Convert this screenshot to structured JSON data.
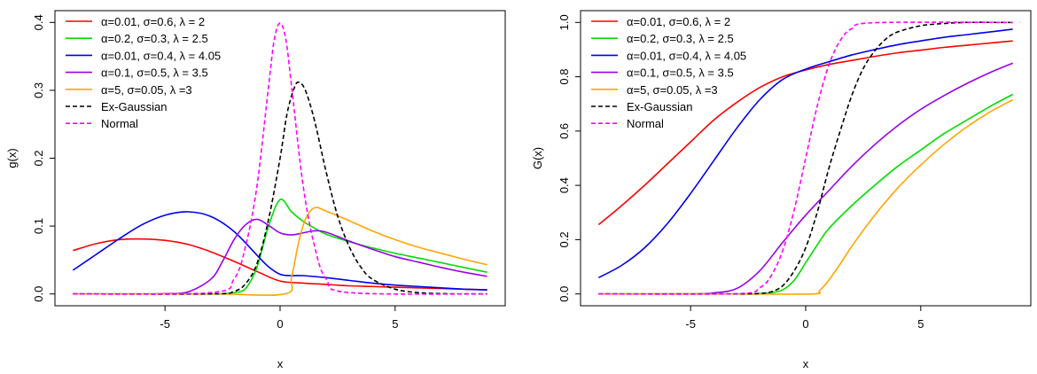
{
  "chart_data": [
    {
      "type": "line",
      "title": "",
      "xlabel": "x",
      "ylabel": "g(x)",
      "xlim": [
        -9,
        9
      ],
      "ylim": [
        0,
        0.4
      ],
      "xticks": [
        -5,
        0,
        5
      ],
      "yticks": [
        0.0,
        0.1,
        0.2,
        0.3,
        0.4
      ],
      "ytick_labels": [
        "0.0",
        "0.1",
        "0.2",
        "0.3",
        "0.4"
      ],
      "legend_position": "top-left",
      "series": [
        {
          "name": "α=0.01, σ=0.6, λ = 2",
          "color": "#ff0000",
          "dash": "solid",
          "x": [
            -9,
            -8,
            -7,
            -6,
            -5,
            -4,
            -3,
            -2,
            -1,
            0,
            1,
            2,
            3,
            4,
            5,
            6,
            7,
            8,
            9
          ],
          "y": [
            0.064,
            0.074,
            0.08,
            0.081,
            0.079,
            0.073,
            0.062,
            0.048,
            0.033,
            0.019,
            0.016,
            0.014,
            0.012,
            0.011,
            0.01,
            0.009,
            0.008,
            0.007,
            0.006
          ]
        },
        {
          "name": "α=0.2, σ=0.3, λ = 2.5",
          "color": "#00dd00",
          "dash": "solid",
          "x": [
            -9,
            -6,
            -3,
            -2.5,
            -2,
            -1.5,
            -1,
            -0.5,
            0,
            0.5,
            1,
            1.5,
            2,
            3,
            4,
            5,
            6,
            7,
            8,
            9
          ],
          "y": [
            0,
            0,
            0,
            0.0005,
            0.002,
            0.008,
            0.04,
            0.1,
            0.139,
            0.121,
            0.107,
            0.097,
            0.088,
            0.077,
            0.068,
            0.06,
            0.053,
            0.046,
            0.039,
            0.032
          ]
        },
        {
          "name": "α=0.01, σ=0.4, λ = 4.05",
          "color": "#0000ee",
          "dash": "solid",
          "x": [
            -9,
            -8,
            -7,
            -6,
            -5,
            -4,
            -3,
            -2,
            -1,
            -0.5,
            0,
            0.5,
            1,
            2,
            3,
            4,
            5,
            6,
            7,
            8,
            9
          ],
          "y": [
            0.035,
            0.058,
            0.081,
            0.102,
            0.116,
            0.121,
            0.114,
            0.092,
            0.057,
            0.04,
            0.029,
            0.027,
            0.027,
            0.024,
            0.02,
            0.016,
            0.013,
            0.011,
            0.009,
            0.007,
            0.006
          ]
        },
        {
          "name": "α=0.1, σ=0.5, λ = 3.5",
          "color": "#9900ee",
          "dash": "solid",
          "x": [
            -9,
            -6,
            -5,
            -4,
            -3,
            -2.5,
            -2,
            -1.5,
            -1,
            -0.5,
            0,
            0.5,
            1,
            1.5,
            2,
            3,
            4,
            5,
            6,
            7,
            8,
            9
          ],
          "y": [
            0,
            0,
            0.0005,
            0.003,
            0.022,
            0.048,
            0.08,
            0.102,
            0.11,
            0.101,
            0.09,
            0.087,
            0.09,
            0.093,
            0.091,
            0.078,
            0.066,
            0.055,
            0.047,
            0.039,
            0.032,
            0.026
          ]
        },
        {
          "name": "α=5, σ=0.05, λ =3",
          "color": "#ffa500",
          "dash": "solid",
          "x": [
            -9,
            -3,
            0.2,
            0.5,
            0.8,
            1.1,
            1.5,
            2,
            3,
            4,
            5,
            6,
            7,
            8,
            9
          ],
          "y": [
            0,
            0,
            0,
            0.025,
            0.075,
            0.11,
            0.127,
            0.122,
            0.108,
            0.093,
            0.08,
            0.069,
            0.06,
            0.051,
            0.043
          ]
        },
        {
          "name": "Ex-Gaussian",
          "color": "#000000",
          "dash": "dashed",
          "x": [
            -9,
            -3,
            -2,
            -1.5,
            -1,
            -0.5,
            0,
            0.3,
            0.6,
            0.8,
            1.1,
            1.5,
            2,
            2.5,
            3,
            3.5,
            4,
            5,
            6,
            7,
            8,
            9
          ],
          "y": [
            0,
            0,
            0.004,
            0.015,
            0.045,
            0.11,
            0.2,
            0.265,
            0.302,
            0.312,
            0.3,
            0.255,
            0.18,
            0.115,
            0.07,
            0.04,
            0.022,
            0.007,
            0.002,
            0.0005,
            0,
            0
          ]
        },
        {
          "name": "Normal",
          "color": "#ff00ff",
          "dash": "dashed",
          "x": [
            -9,
            -3,
            -2,
            -1.5,
            -1,
            -0.5,
            -0.25,
            0,
            0.25,
            0.5,
            1,
            1.5,
            2,
            3,
            9
          ],
          "y": [
            0,
            0.002,
            0.022,
            0.07,
            0.16,
            0.306,
            0.375,
            0.399,
            0.375,
            0.306,
            0.16,
            0.07,
            0.022,
            0.002,
            0
          ]
        }
      ]
    },
    {
      "type": "line",
      "title": "",
      "xlabel": "x",
      "ylabel": "G(x)",
      "xlim": [
        -9,
        9
      ],
      "ylim": [
        0,
        1
      ],
      "xticks": [
        -5,
        0,
        5
      ],
      "yticks": [
        0.0,
        0.2,
        0.4,
        0.6,
        0.8,
        1.0
      ],
      "ytick_labels": [
        "0.0",
        "0.2",
        "0.4",
        "0.6",
        "0.8",
        "1.0"
      ],
      "legend_position": "top-left",
      "series": [
        {
          "name": "α=0.01, σ=0.6, λ = 2",
          "color": "#ff0000",
          "dash": "solid",
          "x": [
            -9,
            -8,
            -7,
            -6,
            -5,
            -4,
            -3,
            -2,
            -1,
            0,
            1,
            2,
            3,
            4,
            5,
            6,
            7,
            8,
            9
          ],
          "y": [
            0.255,
            0.325,
            0.4,
            0.48,
            0.56,
            0.64,
            0.705,
            0.76,
            0.8,
            0.825,
            0.845,
            0.86,
            0.875,
            0.888,
            0.898,
            0.908,
            0.916,
            0.924,
            0.932
          ]
        },
        {
          "name": "α=0.2, σ=0.3, λ = 2.5",
          "color": "#00dd00",
          "dash": "solid",
          "x": [
            -9,
            -3,
            -2,
            -1.5,
            -1,
            -0.5,
            0,
            0.5,
            1,
            2,
            3,
            4,
            5,
            6,
            7,
            8,
            9
          ],
          "y": [
            0,
            0,
            0.002,
            0.005,
            0.015,
            0.05,
            0.115,
            0.18,
            0.24,
            0.325,
            0.4,
            0.47,
            0.53,
            0.59,
            0.64,
            0.69,
            0.735
          ]
        },
        {
          "name": "α=0.01, σ=0.4, λ = 4.05",
          "color": "#0000ee",
          "dash": "solid",
          "x": [
            -9,
            -8,
            -7,
            -6,
            -5,
            -4,
            -3,
            -2,
            -1,
            0,
            1,
            2,
            3,
            4,
            5,
            6,
            7,
            8,
            9
          ],
          "y": [
            0.06,
            0.105,
            0.17,
            0.26,
            0.37,
            0.49,
            0.61,
            0.715,
            0.79,
            0.828,
            0.855,
            0.88,
            0.9,
            0.918,
            0.932,
            0.945,
            0.955,
            0.965,
            0.975
          ]
        },
        {
          "name": "α=0.1, σ=0.5, λ = 3.5",
          "color": "#9900ee",
          "dash": "solid",
          "x": [
            -9,
            -5,
            -4,
            -3,
            -2,
            -1,
            0,
            1,
            2,
            3,
            4,
            5,
            6,
            7,
            8,
            9
          ],
          "y": [
            0,
            0,
            0.004,
            0.02,
            0.085,
            0.19,
            0.29,
            0.38,
            0.47,
            0.55,
            0.62,
            0.68,
            0.73,
            0.775,
            0.815,
            0.85
          ]
        },
        {
          "name": "α=5, σ=0.05, λ =3",
          "color": "#ffa500",
          "dash": "solid",
          "x": [
            -9,
            -3,
            0.3,
            0.6,
            1,
            1.5,
            2,
            3,
            4,
            5,
            6,
            7,
            8,
            9
          ],
          "y": [
            0,
            0,
            0,
            0.012,
            0.05,
            0.11,
            0.175,
            0.29,
            0.39,
            0.475,
            0.55,
            0.615,
            0.67,
            0.715
          ]
        },
        {
          "name": "Ex-Gaussian",
          "color": "#000000",
          "dash": "dashed",
          "x": [
            -9,
            -3,
            -2,
            -1.5,
            -1,
            -0.5,
            0,
            0.5,
            1,
            1.5,
            2,
            2.5,
            3,
            3.5,
            4,
            5,
            6,
            7,
            9
          ],
          "y": [
            0,
            0,
            0.002,
            0.008,
            0.03,
            0.085,
            0.17,
            0.3,
            0.46,
            0.6,
            0.73,
            0.83,
            0.895,
            0.94,
            0.965,
            0.988,
            0.996,
            1.0,
            1.0
          ]
        },
        {
          "name": "Normal",
          "color": "#ff00ff",
          "dash": "dashed",
          "x": [
            -9,
            -3,
            -2,
            -1.5,
            -1,
            -0.5,
            0,
            0.5,
            1,
            1.5,
            2,
            3,
            9
          ],
          "y": [
            0,
            0.001,
            0.023,
            0.067,
            0.159,
            0.309,
            0.5,
            0.691,
            0.841,
            0.933,
            0.977,
            0.999,
            1.0
          ]
        }
      ]
    }
  ]
}
